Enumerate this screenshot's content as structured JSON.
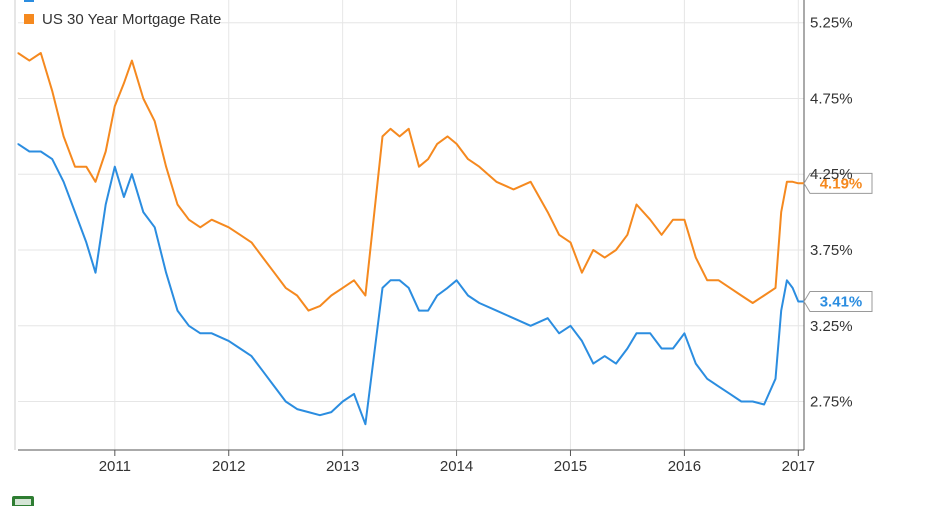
{
  "chart_data": {
    "type": "line",
    "title": "",
    "xlabel": "",
    "ylabel": "",
    "grid": true,
    "legend_position": "top-left",
    "xlim": [
      2010.15,
      2017.05
    ],
    "ylim": [
      2.43,
      5.4
    ],
    "x_ticks": [
      {
        "value": 2011,
        "label": "2011"
      },
      {
        "value": 2012,
        "label": "2012"
      },
      {
        "value": 2013,
        "label": "2013"
      },
      {
        "value": 2014,
        "label": "2014"
      },
      {
        "value": 2015,
        "label": "2015"
      },
      {
        "value": 2016,
        "label": "2016"
      },
      {
        "value": 2017,
        "label": "2017"
      }
    ],
    "y_ticks": [
      {
        "value": 5.25,
        "label": "5.25%"
      },
      {
        "value": 4.75,
        "label": "4.75%"
      },
      {
        "value": 4.25,
        "label": "4.25%"
      },
      {
        "value": 3.75,
        "label": "3.75%"
      },
      {
        "value": 3.25,
        "label": "3.25%"
      },
      {
        "value": 2.75,
        "label": "2.75%"
      }
    ],
    "series": [
      {
        "name": "",
        "color": "#2b8de0",
        "end_label": "3.41%",
        "end_value": 3.41,
        "x": [
          2010.15,
          2010.25,
          2010.35,
          2010.45,
          2010.55,
          2010.65,
          2010.75,
          2010.83,
          2010.92,
          2011.0,
          2011.08,
          2011.15,
          2011.25,
          2011.35,
          2011.45,
          2011.55,
          2011.65,
          2011.75,
          2011.85,
          2012.0,
          2012.1,
          2012.2,
          2012.3,
          2012.4,
          2012.5,
          2012.6,
          2012.7,
          2012.8,
          2012.9,
          2013.0,
          2013.1,
          2013.2,
          2013.35,
          2013.42,
          2013.5,
          2013.58,
          2013.67,
          2013.75,
          2013.83,
          2013.92,
          2014.0,
          2014.1,
          2014.2,
          2014.35,
          2014.5,
          2014.65,
          2014.8,
          2014.9,
          2015.0,
          2015.1,
          2015.2,
          2015.3,
          2015.4,
          2015.5,
          2015.58,
          2015.7,
          2015.8,
          2015.9,
          2016.0,
          2016.1,
          2016.2,
          2016.3,
          2016.4,
          2016.5,
          2016.6,
          2016.7,
          2016.8,
          2016.85,
          2016.9,
          2016.95,
          2017.0,
          2017.05
        ],
        "y": [
          4.45,
          4.4,
          4.4,
          4.35,
          4.2,
          4.0,
          3.8,
          3.6,
          4.05,
          4.3,
          4.1,
          4.25,
          4.0,
          3.9,
          3.6,
          3.35,
          3.25,
          3.2,
          3.2,
          3.15,
          3.1,
          3.05,
          2.95,
          2.85,
          2.75,
          2.7,
          2.68,
          2.66,
          2.68,
          2.75,
          2.8,
          2.6,
          3.5,
          3.55,
          3.55,
          3.5,
          3.35,
          3.35,
          3.45,
          3.5,
          3.55,
          3.45,
          3.4,
          3.35,
          3.3,
          3.25,
          3.3,
          3.2,
          3.25,
          3.15,
          3.0,
          3.05,
          3.0,
          3.1,
          3.2,
          3.2,
          3.1,
          3.1,
          3.2,
          3.0,
          2.9,
          2.85,
          2.8,
          2.75,
          2.75,
          2.73,
          2.9,
          3.35,
          3.55,
          3.5,
          3.41,
          3.41
        ]
      },
      {
        "name": "US 30 Year Mortgage Rate",
        "color": "#f5891f",
        "end_label": "4.19%",
        "end_value": 4.19,
        "x": [
          2010.15,
          2010.25,
          2010.35,
          2010.45,
          2010.55,
          2010.65,
          2010.75,
          2010.83,
          2010.92,
          2011.0,
          2011.08,
          2011.15,
          2011.25,
          2011.35,
          2011.45,
          2011.55,
          2011.65,
          2011.75,
          2011.85,
          2012.0,
          2012.1,
          2012.2,
          2012.3,
          2012.4,
          2012.5,
          2012.6,
          2012.7,
          2012.8,
          2012.9,
          2013.0,
          2013.1,
          2013.2,
          2013.35,
          2013.42,
          2013.5,
          2013.58,
          2013.67,
          2013.75,
          2013.83,
          2013.92,
          2014.0,
          2014.1,
          2014.2,
          2014.35,
          2014.5,
          2014.65,
          2014.8,
          2014.9,
          2015.0,
          2015.1,
          2015.2,
          2015.3,
          2015.4,
          2015.5,
          2015.58,
          2015.7,
          2015.8,
          2015.9,
          2016.0,
          2016.1,
          2016.2,
          2016.3,
          2016.4,
          2016.5,
          2016.6,
          2016.7,
          2016.8,
          2016.85,
          2016.9,
          2016.95,
          2017.0,
          2017.05
        ],
        "y": [
          5.05,
          5.0,
          5.05,
          4.8,
          4.5,
          4.3,
          4.3,
          4.2,
          4.4,
          4.7,
          4.85,
          5.0,
          4.75,
          4.6,
          4.3,
          4.05,
          3.95,
          3.9,
          3.95,
          3.9,
          3.85,
          3.8,
          3.7,
          3.6,
          3.5,
          3.45,
          3.35,
          3.38,
          3.45,
          3.5,
          3.55,
          3.45,
          4.5,
          4.55,
          4.5,
          4.55,
          4.3,
          4.35,
          4.45,
          4.5,
          4.45,
          4.35,
          4.3,
          4.2,
          4.15,
          4.2,
          4.0,
          3.85,
          3.8,
          3.6,
          3.75,
          3.7,
          3.75,
          3.85,
          4.05,
          3.95,
          3.85,
          3.95,
          3.95,
          3.7,
          3.55,
          3.55,
          3.5,
          3.45,
          3.4,
          3.45,
          3.5,
          4.0,
          4.2,
          4.2,
          4.19,
          4.19
        ]
      }
    ]
  },
  "legend": {
    "items": [
      {
        "label": "US 30 Year Mortgage Rate",
        "color": "#f5891f"
      }
    ]
  },
  "logo": {
    "name": "ycharts-logo-icon",
    "color": "#2e7d32"
  }
}
